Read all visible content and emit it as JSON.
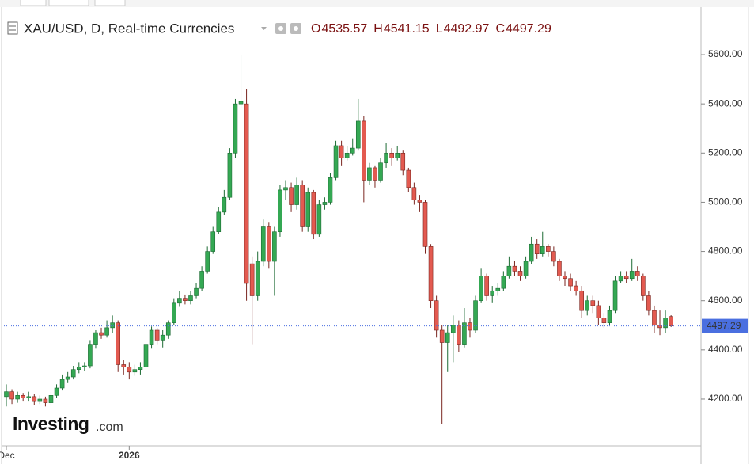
{
  "chart_data": {
    "type": "candlestick",
    "title": "XAU/USD, D, Real-time Currencies",
    "ohlc_labels": [
      "O",
      "H",
      "L",
      "C"
    ],
    "logo": {
      "brand": "Investing",
      "suffix": ".com"
    },
    "up_color": "#34a853",
    "down_color": "#e35a50",
    "price_line_color": "#4a6fe0",
    "categories": [
      "Dec",
      null,
      null,
      null,
      null,
      null,
      null,
      null,
      null,
      null,
      null,
      null,
      null,
      null,
      null,
      null,
      null,
      null,
      null,
      null,
      null,
      null,
      "2026",
      null,
      null,
      null,
      null,
      null,
      null,
      null,
      null,
      null,
      null,
      null,
      null,
      null,
      null,
      null,
      null,
      null,
      null,
      null,
      null,
      null,
      null,
      null,
      null,
      null,
      null,
      null,
      null,
      null,
      null,
      null,
      null,
      null,
      null,
      null,
      null,
      null,
      null,
      null,
      null,
      null,
      null,
      null,
      null,
      null,
      null,
      null,
      null,
      null,
      null,
      null,
      null,
      null,
      null,
      null,
      null,
      null,
      null,
      null,
      null,
      null,
      null,
      null,
      null,
      null,
      null,
      null,
      null,
      null,
      null,
      null,
      null,
      null,
      null,
      null,
      null,
      null,
      null,
      null,
      null,
      null,
      null,
      null,
      null,
      null,
      null,
      null,
      null,
      null,
      null,
      null,
      null,
      null,
      null,
      null,
      null,
      null
    ],
    "open": [
      4210,
      4230,
      4200,
      4215,
      4205,
      4210,
      4190,
      4200,
      4185,
      4215,
      4245,
      4280,
      4290,
      4320,
      4330,
      4335,
      4420,
      4470,
      4460,
      4490,
      4510,
      4340,
      4330,
      4310,
      4320,
      4330,
      4420,
      4480,
      4440,
      4460,
      4510,
      4590,
      4610,
      4600,
      4620,
      4650,
      4720,
      4800,
      4880,
      4960,
      5020,
      5200,
      5400,
      5400,
      4750,
      4620,
      4760,
      4900,
      4760,
      4880,
      5050,
      5060,
      4990,
      5070,
      4900,
      5040,
      4870,
      4990,
      5000,
      5100,
      5230,
      5180,
      5200,
      5220,
      5330,
      5090,
      5140,
      5090,
      5160,
      5200,
      5180,
      5200,
      5130,
      5060,
      5010,
      5000,
      4820,
      4600,
      4480,
      4430,
      4470,
      4500,
      4420,
      4510,
      4480,
      4600,
      4700,
      4620,
      4640,
      4650,
      4700,
      4740,
      4720,
      4700,
      4760,
      4830,
      4790,
      4820,
      4800,
      4760,
      4700,
      4690,
      4660,
      4640,
      4560,
      4600,
      4580,
      4530,
      4510,
      4560,
      4680,
      4700,
      4690,
      4720,
      4700,
      4620,
      4560,
      4500,
      4490,
      4535.57
    ],
    "high": [
      4260,
      4240,
      4230,
      4225,
      4230,
      4220,
      4215,
      4210,
      4230,
      4260,
      4300,
      4310,
      4335,
      4350,
      4350,
      4440,
      4480,
      4490,
      4520,
      4540,
      4520,
      4360,
      4350,
      4340,
      4350,
      4435,
      4495,
      4490,
      4480,
      4520,
      4610,
      4640,
      4625,
      4640,
      4670,
      4740,
      4820,
      4900,
      4980,
      5050,
      5220,
      5420,
      5600,
      5460,
      4780,
      4800,
      4930,
      4920,
      4900,
      5070,
      5090,
      5080,
      5100,
      5090,
      5060,
      5050,
      5010,
      5020,
      5120,
      5250,
      5250,
      5230,
      5260,
      5420,
      5350,
      5160,
      5150,
      5180,
      5240,
      5220,
      5230,
      5210,
      5140,
      5080,
      5030,
      5010,
      4830,
      4620,
      4500,
      4500,
      4540,
      4520,
      4570,
      4530,
      4620,
      4730,
      4710,
      4660,
      4670,
      4720,
      4780,
      4760,
      4740,
      4780,
      4860,
      4850,
      4880,
      4830,
      4820,
      4770,
      4720,
      4710,
      4680,
      4660,
      4620,
      4620,
      4600,
      4550,
      4580,
      4700,
      4720,
      4720,
      4770,
      4740,
      4710,
      4640,
      4580,
      4560,
      4560,
      4541.15
    ],
    "low": [
      4170,
      4180,
      4185,
      4190,
      4190,
      4175,
      4180,
      4170,
      4175,
      4205,
      4235,
      4265,
      4280,
      4305,
      4315,
      4325,
      4405,
      4445,
      4450,
      4470,
      4310,
      4300,
      4280,
      4295,
      4300,
      4320,
      4405,
      4420,
      4410,
      4445,
      4500,
      4575,
      4585,
      4585,
      4610,
      4640,
      4710,
      4790,
      4870,
      4950,
      5010,
      5180,
      5380,
      4600,
      4420,
      4600,
      4740,
      4730,
      4620,
      4860,
      5010,
      4960,
      4970,
      4880,
      4880,
      4850,
      4860,
      4970,
      4990,
      5090,
      5150,
      5170,
      5190,
      5210,
      5000,
      5070,
      5060,
      5080,
      5140,
      5150,
      5170,
      5110,
      5040,
      4990,
      4960,
      4790,
      4570,
      4450,
      4100,
      4310,
      4350,
      4390,
      4410,
      4450,
      4470,
      4590,
      4600,
      4590,
      4620,
      4640,
      4690,
      4700,
      4680,
      4690,
      4750,
      4770,
      4780,
      4780,
      4740,
      4680,
      4660,
      4640,
      4620,
      4530,
      4540,
      4550,
      4500,
      4490,
      4500,
      4550,
      4670,
      4670,
      4680,
      4680,
      4600,
      4540,
      4470,
      4460,
      4470,
      4492.97
    ],
    "close": [
      4230,
      4200,
      4215,
      4205,
      4210,
      4190,
      4200,
      4185,
      4215,
      4245,
      4280,
      4290,
      4320,
      4330,
      4335,
      4420,
      4470,
      4460,
      4490,
      4510,
      4340,
      4330,
      4310,
      4320,
      4330,
      4420,
      4480,
      4440,
      4460,
      4510,
      4590,
      4610,
      4600,
      4620,
      4650,
      4720,
      4800,
      4880,
      4960,
      5020,
      5200,
      5400,
      5410,
      4670,
      4620,
      4760,
      4900,
      4760,
      4880,
      5050,
      5060,
      4990,
      5070,
      4900,
      5040,
      4870,
      4990,
      5000,
      5100,
      5230,
      5180,
      5200,
      5220,
      5330,
      5090,
      5140,
      5090,
      5160,
      5200,
      5180,
      5200,
      5130,
      5060,
      5010,
      5000,
      4820,
      4600,
      4480,
      4430,
      4470,
      4500,
      4420,
      4510,
      4480,
      4600,
      4700,
      4620,
      4640,
      4650,
      4700,
      4740,
      4720,
      4700,
      4760,
      4830,
      4790,
      4820,
      4800,
      4760,
      4700,
      4690,
      4660,
      4640,
      4560,
      4600,
      4580,
      4530,
      4510,
      4560,
      4680,
      4700,
      4690,
      4720,
      4700,
      4620,
      4560,
      4500,
      4490,
      4530,
      4497.29
    ],
    "ylim": [
      4010,
      5790
    ],
    "yticks": [
      {
        "value": 4200,
        "label": "4200.00"
      },
      {
        "value": 4400,
        "label": "4400.00"
      },
      {
        "value": 4600,
        "label": "4600.00"
      },
      {
        "value": 4800,
        "label": "4800.00"
      },
      {
        "value": 5000,
        "label": "5000.00"
      },
      {
        "value": 5200,
        "label": "5200.00"
      },
      {
        "value": 5400,
        "label": "5400.00"
      },
      {
        "value": 5600,
        "label": "5600.00"
      }
    ]
  }
}
